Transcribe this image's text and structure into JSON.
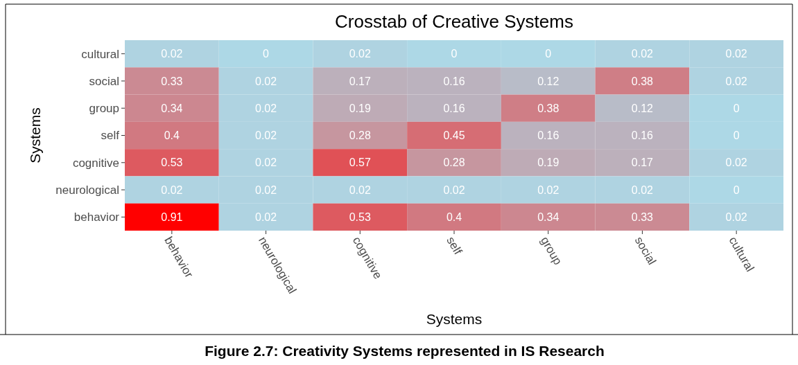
{
  "chart_data": {
    "type": "heatmap",
    "title": "Crosstab of Creative Systems",
    "xlabel": "Systems",
    "ylabel": "Systems",
    "categories": [
      "behavior",
      "neurological",
      "cognitive",
      "self",
      "group",
      "social",
      "cultural"
    ],
    "y_categories": [
      "cultural",
      "social",
      "group",
      "self",
      "cognitive",
      "neurological",
      "behavior"
    ],
    "cells": [
      [
        0.02,
        0,
        0.02,
        0,
        0,
        0.02,
        0.02
      ],
      [
        0.33,
        0.02,
        0.17,
        0.16,
        0.12,
        0.38,
        0.02
      ],
      [
        0.34,
        0.02,
        0.19,
        0.16,
        0.38,
        0.12,
        0
      ],
      [
        0.4,
        0.02,
        0.28,
        0.45,
        0.16,
        0.16,
        0
      ],
      [
        0.53,
        0.02,
        0.57,
        0.28,
        0.19,
        0.17,
        0.02
      ],
      [
        0.02,
        0.02,
        0.02,
        0.02,
        0.02,
        0.02,
        0
      ],
      [
        0.91,
        0.02,
        0.53,
        0.4,
        0.34,
        0.33,
        0.02
      ]
    ],
    "colors": [
      "#add8e6",
      "#ff0000"
    ],
    "data_labels": true,
    "annotations": [
      "Figure 2.7: Creativity Systems represented in IS Research"
    ]
  }
}
